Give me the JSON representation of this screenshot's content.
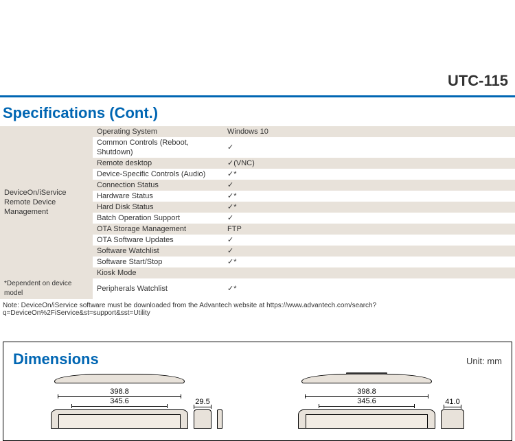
{
  "header": {
    "product_model": "UTC-115"
  },
  "section_specs": {
    "heading": "Specifications (Cont.)",
    "category_label_line1": "DeviceOn/iService",
    "category_label_line2": "Remote Device Management",
    "dependent_note": "*Dependent on device model",
    "rows": [
      {
        "item": "Operating System",
        "value": "Windows 10",
        "alt": true
      },
      {
        "item": "Common Controls (Reboot, Shutdown)",
        "value": "✓",
        "alt": false
      },
      {
        "item": "Remote desktop",
        "value": "✓(VNC)",
        "alt": true
      },
      {
        "item": "Device-Specific Controls (Audio)",
        "value": "✓*",
        "alt": false
      },
      {
        "item": "Connection Status",
        "value": "✓",
        "alt": true
      },
      {
        "item": "Hardware Status",
        "value": "✓*",
        "alt": false
      },
      {
        "item": "Hard Disk Status",
        "value": "✓*",
        "alt": true
      },
      {
        "item": "Batch Operation Support",
        "value": "✓",
        "alt": false
      },
      {
        "item": "OTA Storage Management",
        "value": "FTP",
        "alt": true
      },
      {
        "item": "OTA Software Updates",
        "value": "✓",
        "alt": false
      },
      {
        "item": "Software Watchlist",
        "value": "✓",
        "alt": true
      },
      {
        "item": "Software Start/Stop",
        "value": "✓*",
        "alt": false
      },
      {
        "item": "Kiosk Mode",
        "value": "",
        "alt": true
      },
      {
        "item": "Peripherals Watchlist",
        "value": "✓*",
        "alt": false
      }
    ],
    "footnote": "Note: DeviceOn/iService software must be downloaded from the Advantech website at https://www.advantech.com/search?q=DeviceOn%2FiService&st=support&sst=Utility"
  },
  "section_dimensions": {
    "heading": "Dimensions",
    "unit_label": "Unit: mm",
    "view1": {
      "width_outer": "398.8",
      "width_inner": "345.6",
      "depth": "29.5"
    },
    "view2": {
      "width_outer": "398.8",
      "width_inner": "345.6",
      "depth": "41.0"
    }
  },
  "colors": {
    "brand_blue": "#0066b3",
    "row_alt_bg": "#e8e2da",
    "text": "#333333",
    "diagram_fill": "#e8e2da"
  }
}
